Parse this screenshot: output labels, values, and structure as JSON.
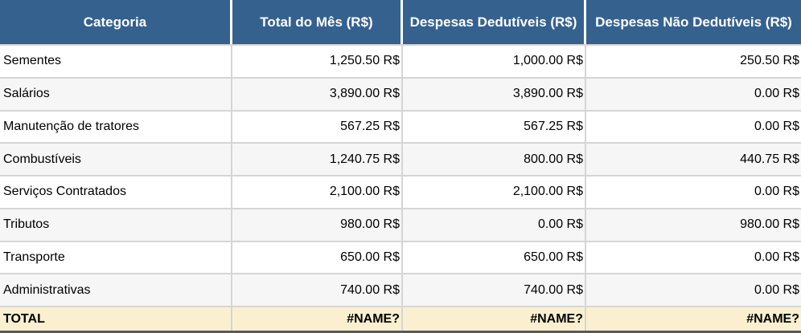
{
  "table": {
    "columns": [
      "Categoria",
      "Total do Mês (R$)",
      "Despesas Dedutíveis (R$)",
      "Despesas Não Dedutíveis (R$)"
    ],
    "rows": [
      [
        "Sementes",
        "1,250.50 R$",
        "1,000.00 R$",
        "250.50 R$"
      ],
      [
        "Salários",
        "3,890.00 R$",
        "3,890.00 R$",
        "0.00 R$"
      ],
      [
        "Manutenção de tratores",
        "567.25 R$",
        "567.25 R$",
        "0.00 R$"
      ],
      [
        "Combustíveis",
        "1,240.75 R$",
        "800.00 R$",
        "440.75 R$"
      ],
      [
        "Serviços Contratados",
        "2,100.00 R$",
        "2,100.00 R$",
        "0.00 R$"
      ],
      [
        "Tributos",
        "980.00 R$",
        "0.00 R$",
        "980.00 R$"
      ],
      [
        "Transporte",
        "650.00 R$",
        "650.00 R$",
        "0.00 R$"
      ],
      [
        "Administrativas",
        "740.00 R$",
        "740.00 R$",
        "0.00 R$"
      ]
    ],
    "total_row": [
      "TOTAL",
      "#NAME?",
      "#NAME?",
      "#NAME?"
    ]
  },
  "colors": {
    "header_bg": "#35618F",
    "header_text": "#FFFFFF",
    "row_bg": "#FFFFFF",
    "alt_row_bg": "#F7F6F6",
    "grid_line": "#D5D5D5",
    "total_bg": "#FAF0D0",
    "total_text": "#000000",
    "bottom_border": "#595959"
  }
}
